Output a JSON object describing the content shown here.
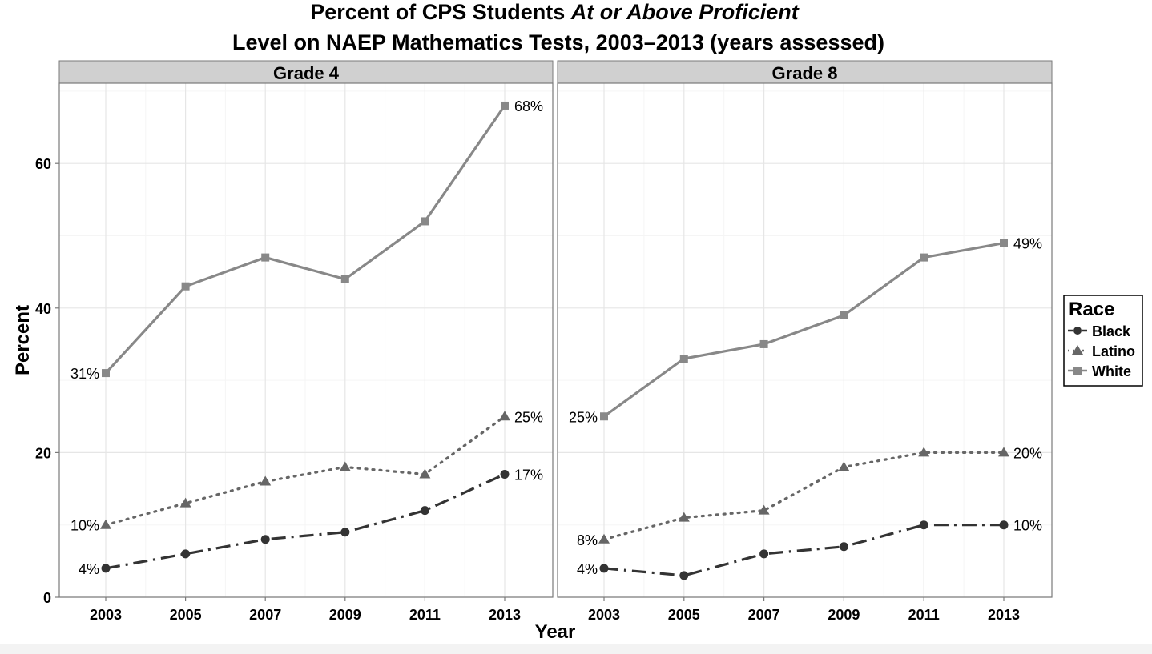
{
  "chart_data": {
    "type": "line",
    "title_line1_a": "Percent of CPS Students ",
    "title_line1_b": "At or Above Proficient",
    "title_line2": "Level on NAEP Mathematics Tests, 2003–2013 (years assessed)",
    "xlabel": "Year",
    "ylabel": "Percent",
    "x": [
      2003,
      2005,
      2007,
      2009,
      2011,
      2013
    ],
    "x_tick_labels": [
      "2003",
      "2005",
      "2007",
      "2009",
      "2011",
      "2013"
    ],
    "y_ticks": [
      0,
      20,
      40,
      60
    ],
    "y_tick_labels": [
      "0",
      "20",
      "40",
      "60"
    ],
    "ylim": [
      0,
      70
    ],
    "grid": true,
    "legend": {
      "title": "Race",
      "position": "right",
      "entries": [
        {
          "name": "Black",
          "color": "#333333",
          "marker": "circle",
          "line": "longdash-dot"
        },
        {
          "name": "Latino",
          "color": "#666666",
          "marker": "triangle",
          "line": "dotted"
        },
        {
          "name": "White",
          "color": "#888888",
          "marker": "square",
          "line": "solid"
        }
      ]
    },
    "panels": [
      {
        "name": "Grade 4",
        "series": [
          {
            "name": "Black",
            "values": [
              4,
              6,
              8,
              9,
              12,
              17
            ],
            "start_label": "4%",
            "end_label": "17%"
          },
          {
            "name": "Latino",
            "values": [
              10,
              13,
              16,
              18,
              17,
              25
            ],
            "start_label": "10%",
            "end_label": "25%"
          },
          {
            "name": "White",
            "values": [
              31,
              43,
              47,
              44,
              52,
              68
            ],
            "start_label": "31%",
            "end_label": "68%"
          }
        ]
      },
      {
        "name": "Grade 8",
        "series": [
          {
            "name": "Black",
            "values": [
              4,
              3,
              6,
              7,
              10,
              10
            ],
            "start_label": "4%",
            "end_label": "10%"
          },
          {
            "name": "Latino",
            "values": [
              8,
              11,
              12,
              18,
              20,
              20
            ],
            "start_label": "8%",
            "end_label": "20%"
          },
          {
            "name": "White",
            "values": [
              25,
              33,
              35,
              39,
              47,
              49
            ],
            "start_label": "25%",
            "end_label": "49%"
          }
        ]
      }
    ]
  }
}
